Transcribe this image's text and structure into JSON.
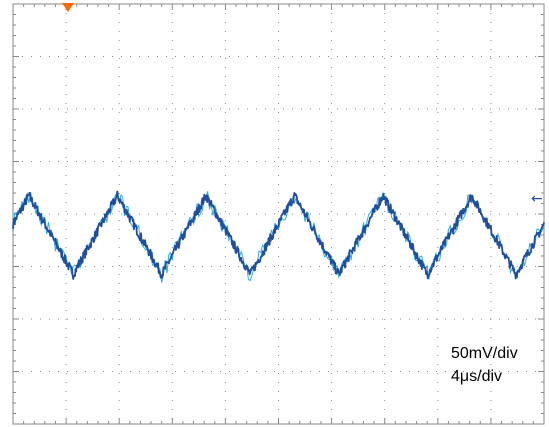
{
  "chart_data": {
    "type": "line",
    "title": "",
    "xlabel": "",
    "ylabel": "",
    "grid": true,
    "grid_divisions": {
      "x": 10,
      "y": 8
    },
    "time_per_div_us": 4,
    "volts_per_div_mV": 50,
    "xlim_us": [
      0,
      40
    ],
    "ylim_mV": [
      -200,
      200
    ],
    "series": [
      {
        "waveform": "triangle",
        "frequency_kHz": 150,
        "period_us": 6.67,
        "peak_to_peak_mV": 75,
        "offset_mV": -20,
        "peak_time_us": [
          1.2,
          7.9,
          14.5,
          21.2,
          27.9,
          34.5
        ],
        "color": "#1f4e9c",
        "noise_color": "#1aa3d8"
      }
    ]
  },
  "annotations": {
    "volts_per_div": "50mV/div",
    "time_per_div": "4μs/div"
  },
  "markers": {
    "trigger_marker_color": "#ff6a00",
    "reference_arrow_glyph": "←",
    "grid_color": "#8a8a8a"
  }
}
